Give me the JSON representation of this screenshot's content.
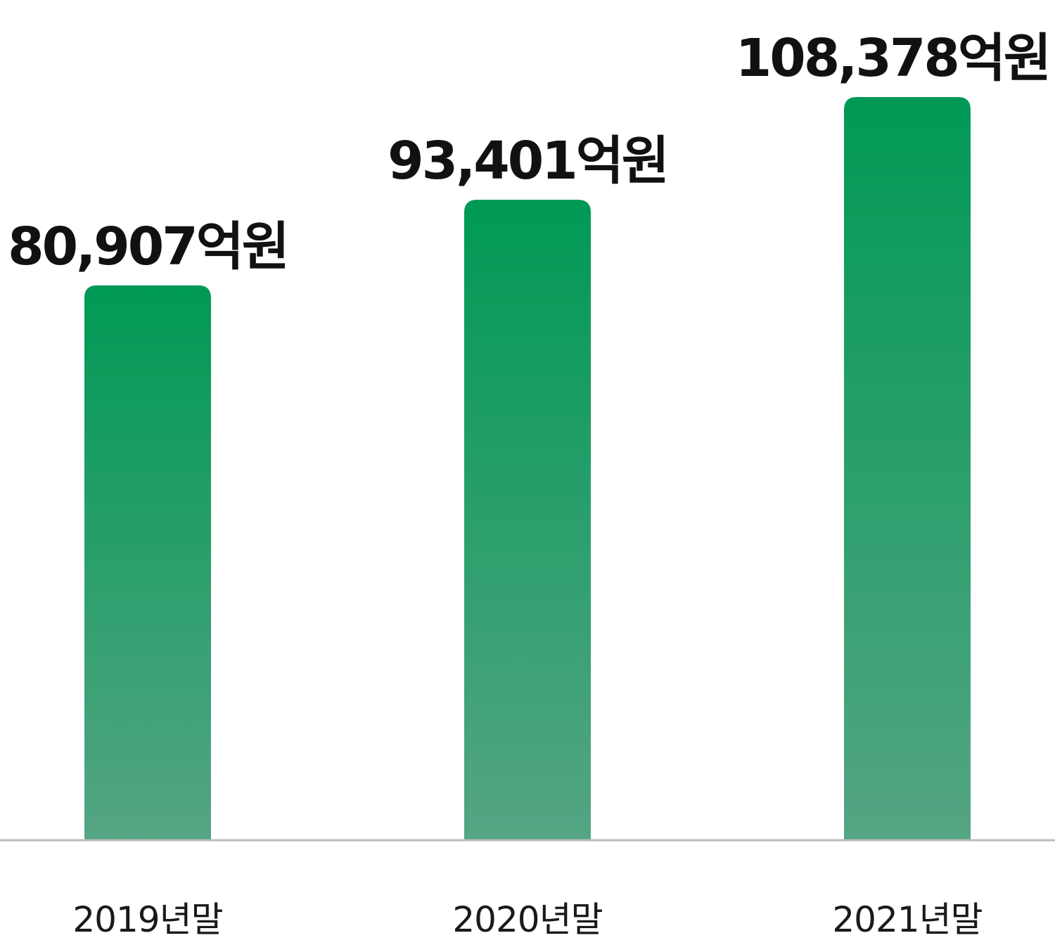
{
  "chart_data": {
    "type": "bar",
    "categories": [
      "2019년말",
      "2020년말",
      "2021년말"
    ],
    "values": [
      80907,
      93401,
      108378
    ],
    "data_labels": [
      "80,907억원",
      "93,401억원",
      "108,378억원"
    ],
    "unit": "억원",
    "title": "",
    "xlabel": "",
    "ylabel": "",
    "grid": false,
    "legend": "none",
    "colors": {
      "bar_top": "#009955",
      "bar_bottom": "#55a583",
      "baseline": "#bbbbbb",
      "label": "#111111"
    }
  }
}
